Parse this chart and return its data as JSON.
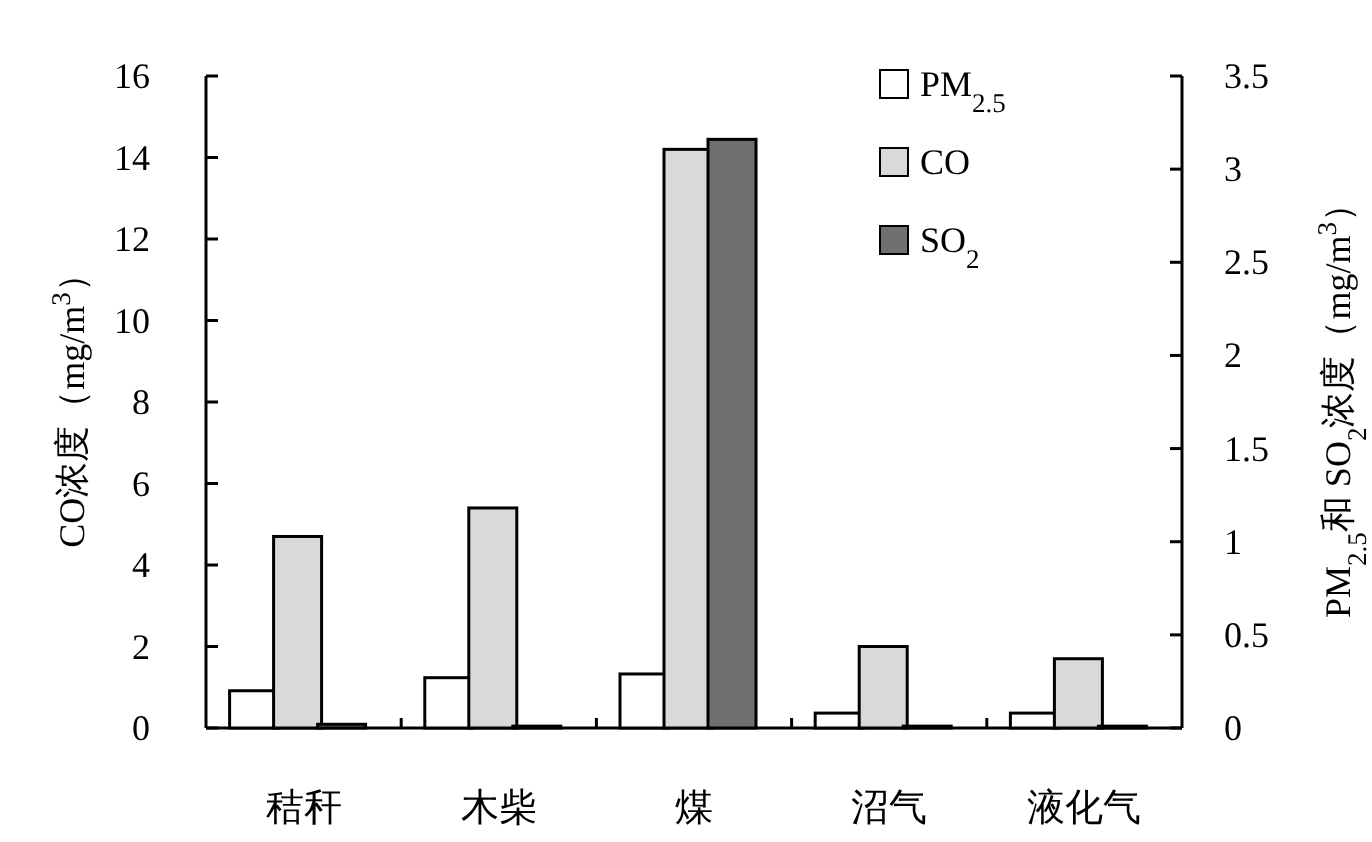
{
  "chart_data": {
    "type": "bar",
    "categories": [
      "秸秆",
      "木柴",
      "煤",
      "沼气",
      "液化气"
    ],
    "ylabel": "CO浓度（mg/m$^{3}$）",
    "y2label": "PM$_{2.5}$和 SO$_{2}$浓度（mg/m$^{3}$）",
    "ylim": [
      0,
      16
    ],
    "yticks": [
      0,
      2,
      4,
      6,
      8,
      10,
      12,
      14,
      16
    ],
    "y2lim": [
      0,
      3.5
    ],
    "y2ticks": [
      0,
      0.5,
      1,
      1.5,
      2,
      2.5,
      3,
      3.5
    ],
    "legend": "top right",
    "series": [
      {
        "name": "PM$_{2.5}$",
        "color": "#ffffff",
        "axis": "y2",
        "values": [
          0.2,
          0.27,
          0.29,
          0.08,
          0.08
        ]
      },
      {
        "name": "CO",
        "color": "#d9d9d9",
        "values": [
          4.7,
          5.4,
          14.2,
          2.0,
          1.7
        ]
      },
      {
        "name": "SO$_{2}$",
        "color": "#707070",
        "axis": "y2",
        "values": [
          0.02,
          0.01,
          3.16,
          0.01,
          0.01
        ]
      }
    ]
  }
}
